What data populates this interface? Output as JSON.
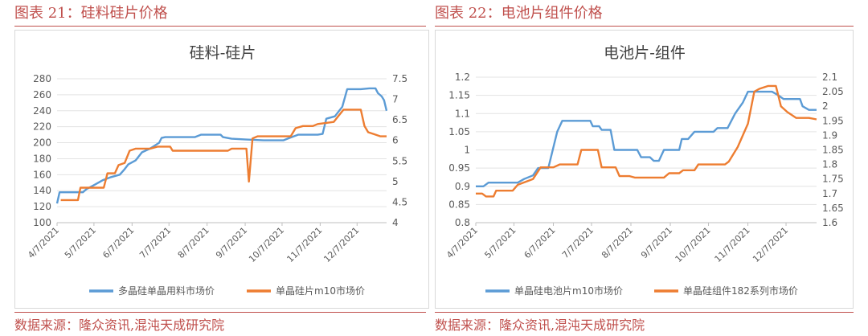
{
  "figures": [
    {
      "caption": "图表 21：硅料硅片价格",
      "source": "数据来源：隆众资讯,混沌天成研究院"
    },
    {
      "caption": "图表 22：电池片组件价格",
      "source": "数据来源：隆众资讯,混沌天成研究院"
    }
  ],
  "chart_data": [
    {
      "type": "line",
      "title": "硅料-硅片",
      "xlabel": "",
      "ylabel": "",
      "x_ticks": [
        "4/7/2021",
        "5/7/2021",
        "6/7/2021",
        "7/7/2021",
        "8/7/2021",
        "9/7/2021",
        "10/7/2021",
        "11/7/2021",
        "12/7/2021"
      ],
      "xlim": [
        "2021-04-07",
        "2021-12-31"
      ],
      "ylim": [
        100,
        280
      ],
      "y_ticks": [
        100,
        120,
        140,
        160,
        180,
        200,
        220,
        240,
        260,
        280
      ],
      "y2lim": [
        4,
        7.5
      ],
      "y2_ticks": [
        "4",
        "4.5",
        "5",
        "5.5",
        "6",
        "6.5",
        "7",
        "7.5"
      ],
      "grid": true,
      "legend_position": "bottom",
      "series": [
        {
          "name": "多晶硅单晶用料市场价",
          "axis": "left",
          "color": "#5b9bd5",
          "points": [
            [
              "2021-04-07",
              124
            ],
            [
              "2021-04-09",
              138
            ],
            [
              "2021-04-28",
              138
            ],
            [
              "2021-05-01",
              142
            ],
            [
              "2021-05-07",
              147
            ],
            [
              "2021-05-14",
              153
            ],
            [
              "2021-05-21",
              157
            ],
            [
              "2021-05-28",
              160
            ],
            [
              "2021-06-01",
              167
            ],
            [
              "2021-06-04",
              173
            ],
            [
              "2021-06-10",
              178
            ],
            [
              "2021-06-15",
              188
            ],
            [
              "2021-06-22",
              193
            ],
            [
              "2021-06-29",
              200
            ],
            [
              "2021-07-01",
              206
            ],
            [
              "2021-07-04",
              207
            ],
            [
              "2021-07-28",
              207
            ],
            [
              "2021-08-02",
              210
            ],
            [
              "2021-08-18",
              210
            ],
            [
              "2021-08-20",
              207
            ],
            [
              "2021-08-27",
              205
            ],
            [
              "2021-09-08",
              204
            ],
            [
              "2021-09-22",
              203
            ],
            [
              "2021-10-01",
              203
            ],
            [
              "2021-10-08",
              203
            ],
            [
              "2021-10-13",
              206
            ],
            [
              "2021-10-20",
              210
            ],
            [
              "2021-10-28",
              210
            ],
            [
              "2021-11-05",
              210
            ],
            [
              "2021-11-09",
              211
            ],
            [
              "2021-11-12",
              230
            ],
            [
              "2021-11-19",
              233
            ],
            [
              "2021-11-25",
              245
            ],
            [
              "2021-11-29",
              267
            ],
            [
              "2021-12-10",
              267
            ],
            [
              "2021-12-17",
              268
            ],
            [
              "2021-12-22",
              268
            ],
            [
              "2021-12-24",
              262
            ],
            [
              "2021-12-27",
              258
            ],
            [
              "2021-12-29",
              253
            ],
            [
              "2021-12-31",
              240
            ]
          ]
        },
        {
          "name": "单晶硅片m10市场价",
          "axis": "right",
          "color": "#ed7d31",
          "points": [
            [
              "2021-04-10",
              4.55
            ],
            [
              "2021-04-24",
              4.55
            ],
            [
              "2021-04-26",
              4.85
            ],
            [
              "2021-05-15",
              4.85
            ],
            [
              "2021-05-18",
              5.2
            ],
            [
              "2021-05-24",
              5.2
            ],
            [
              "2021-05-27",
              5.4
            ],
            [
              "2021-06-01",
              5.45
            ],
            [
              "2021-06-05",
              5.75
            ],
            [
              "2021-06-10",
              5.8
            ],
            [
              "2021-06-22",
              5.8
            ],
            [
              "2021-06-28",
              5.85
            ],
            [
              "2021-07-08",
              5.85
            ],
            [
              "2021-07-10",
              5.75
            ],
            [
              "2021-08-24",
              5.75
            ],
            [
              "2021-08-27",
              5.8
            ],
            [
              "2021-09-08",
              5.8
            ],
            [
              "2021-09-10",
              5.0
            ],
            [
              "2021-09-13",
              6.05
            ],
            [
              "2021-09-17",
              6.1
            ],
            [
              "2021-10-14",
              6.1
            ],
            [
              "2021-10-18",
              6.3
            ],
            [
              "2021-10-24",
              6.35
            ],
            [
              "2021-11-01",
              6.35
            ],
            [
              "2021-11-05",
              6.4
            ],
            [
              "2021-11-18",
              6.45
            ],
            [
              "2021-11-22",
              6.6
            ],
            [
              "2021-11-26",
              6.75
            ],
            [
              "2021-12-10",
              6.75
            ],
            [
              "2021-12-13",
              6.35
            ],
            [
              "2021-12-16",
              6.2
            ],
            [
              "2021-12-21",
              6.15
            ],
            [
              "2021-12-26",
              6.1
            ],
            [
              "2021-12-31",
              6.1
            ]
          ]
        }
      ]
    },
    {
      "type": "line",
      "title": "电池片-组件",
      "xlabel": "",
      "ylabel": "",
      "x_ticks": [
        "4/7/2021",
        "5/7/2021",
        "6/7/2021",
        "7/7/2021",
        "8/7/2021",
        "9/7/2021",
        "10/7/2021",
        "11/7/2021",
        "12/7/2021"
      ],
      "xlim": [
        "2021-04-07",
        "2021-12-31"
      ],
      "ylim": [
        0.8,
        1.2
      ],
      "y_ticks": [
        "0.8",
        "0.85",
        "0.9",
        "0.95",
        "1",
        "1.05",
        "1.1",
        "1.15",
        "1.2"
      ],
      "y2lim": [
        1.6,
        2.1
      ],
      "y2_ticks": [
        "1.6",
        "1.65",
        "1.7",
        "1.75",
        "1.8",
        "1.85",
        "1.9",
        "1.95",
        "2",
        "2.05",
        "2.1"
      ],
      "grid": true,
      "legend_position": "bottom",
      "series": [
        {
          "name": "单晶硅电池片m10市场价",
          "axis": "left",
          "color": "#5b9bd5",
          "points": [
            [
              "2021-04-07",
              0.9
            ],
            [
              "2021-04-13",
              0.9
            ],
            [
              "2021-04-17",
              0.91
            ],
            [
              "2021-05-10",
              0.91
            ],
            [
              "2021-05-15",
              0.92
            ],
            [
              "2021-05-22",
              0.93
            ],
            [
              "2021-05-26",
              0.95
            ],
            [
              "2021-06-03",
              0.95
            ],
            [
              "2021-06-10",
              1.05
            ],
            [
              "2021-06-14",
              1.08
            ],
            [
              "2021-06-22",
              1.08
            ],
            [
              "2021-07-06",
              1.08
            ],
            [
              "2021-07-08",
              1.065
            ],
            [
              "2021-07-13",
              1.065
            ],
            [
              "2021-07-15",
              1.055
            ],
            [
              "2021-07-22",
              1.055
            ],
            [
              "2021-07-25",
              1.0
            ],
            [
              "2021-08-12",
              1.0
            ],
            [
              "2021-08-15",
              0.98
            ],
            [
              "2021-08-22",
              0.98
            ],
            [
              "2021-08-25",
              0.97
            ],
            [
              "2021-08-29",
              0.97
            ],
            [
              "2021-09-02",
              1.0
            ],
            [
              "2021-09-14",
              1.0
            ],
            [
              "2021-09-16",
              1.03
            ],
            [
              "2021-09-21",
              1.03
            ],
            [
              "2021-09-26",
              1.05
            ],
            [
              "2021-10-11",
              1.05
            ],
            [
              "2021-10-14",
              1.06
            ],
            [
              "2021-10-22",
              1.06
            ],
            [
              "2021-10-28",
              1.1
            ],
            [
              "2021-11-03",
              1.13
            ],
            [
              "2021-11-07",
              1.16
            ],
            [
              "2021-11-26",
              1.16
            ],
            [
              "2021-12-01",
              1.15
            ],
            [
              "2021-12-05",
              1.14
            ],
            [
              "2021-12-18",
              1.14
            ],
            [
              "2021-12-20",
              1.12
            ],
            [
              "2021-12-25",
              1.11
            ],
            [
              "2021-12-31",
              1.11
            ]
          ]
        },
        {
          "name": "单晶硅组件182系列市场价",
          "axis": "right",
          "color": "#ed7d31",
          "points": [
            [
              "2021-04-07",
              1.7
            ],
            [
              "2021-04-12",
              1.7
            ],
            [
              "2021-04-15",
              1.69
            ],
            [
              "2021-04-21",
              1.69
            ],
            [
              "2021-04-23",
              1.71
            ],
            [
              "2021-05-06",
              1.71
            ],
            [
              "2021-05-10",
              1.73
            ],
            [
              "2021-05-22",
              1.75
            ],
            [
              "2021-05-28",
              1.79
            ],
            [
              "2021-06-07",
              1.79
            ],
            [
              "2021-06-12",
              1.8
            ],
            [
              "2021-06-26",
              1.8
            ],
            [
              "2021-06-29",
              1.85
            ],
            [
              "2021-07-12",
              1.85
            ],
            [
              "2021-07-15",
              1.79
            ],
            [
              "2021-07-26",
              1.79
            ],
            [
              "2021-07-29",
              1.76
            ],
            [
              "2021-08-06",
              1.76
            ],
            [
              "2021-08-10",
              1.755
            ],
            [
              "2021-09-02",
              1.755
            ],
            [
              "2021-09-06",
              1.77
            ],
            [
              "2021-09-14",
              1.77
            ],
            [
              "2021-09-17",
              1.78
            ],
            [
              "2021-09-26",
              1.78
            ],
            [
              "2021-09-29",
              1.8
            ],
            [
              "2021-10-20",
              1.8
            ],
            [
              "2021-10-23",
              1.81
            ],
            [
              "2021-10-30",
              1.86
            ],
            [
              "2021-11-07",
              1.94
            ],
            [
              "2021-11-12",
              2.05
            ],
            [
              "2021-11-16",
              2.06
            ],
            [
              "2021-11-23",
              2.07
            ],
            [
              "2021-11-29",
              2.07
            ],
            [
              "2021-12-03",
              2.0
            ],
            [
              "2021-12-08",
              1.98
            ],
            [
              "2021-12-15",
              1.96
            ],
            [
              "2021-12-25",
              1.96
            ],
            [
              "2021-12-31",
              1.955
            ]
          ]
        }
      ]
    }
  ]
}
